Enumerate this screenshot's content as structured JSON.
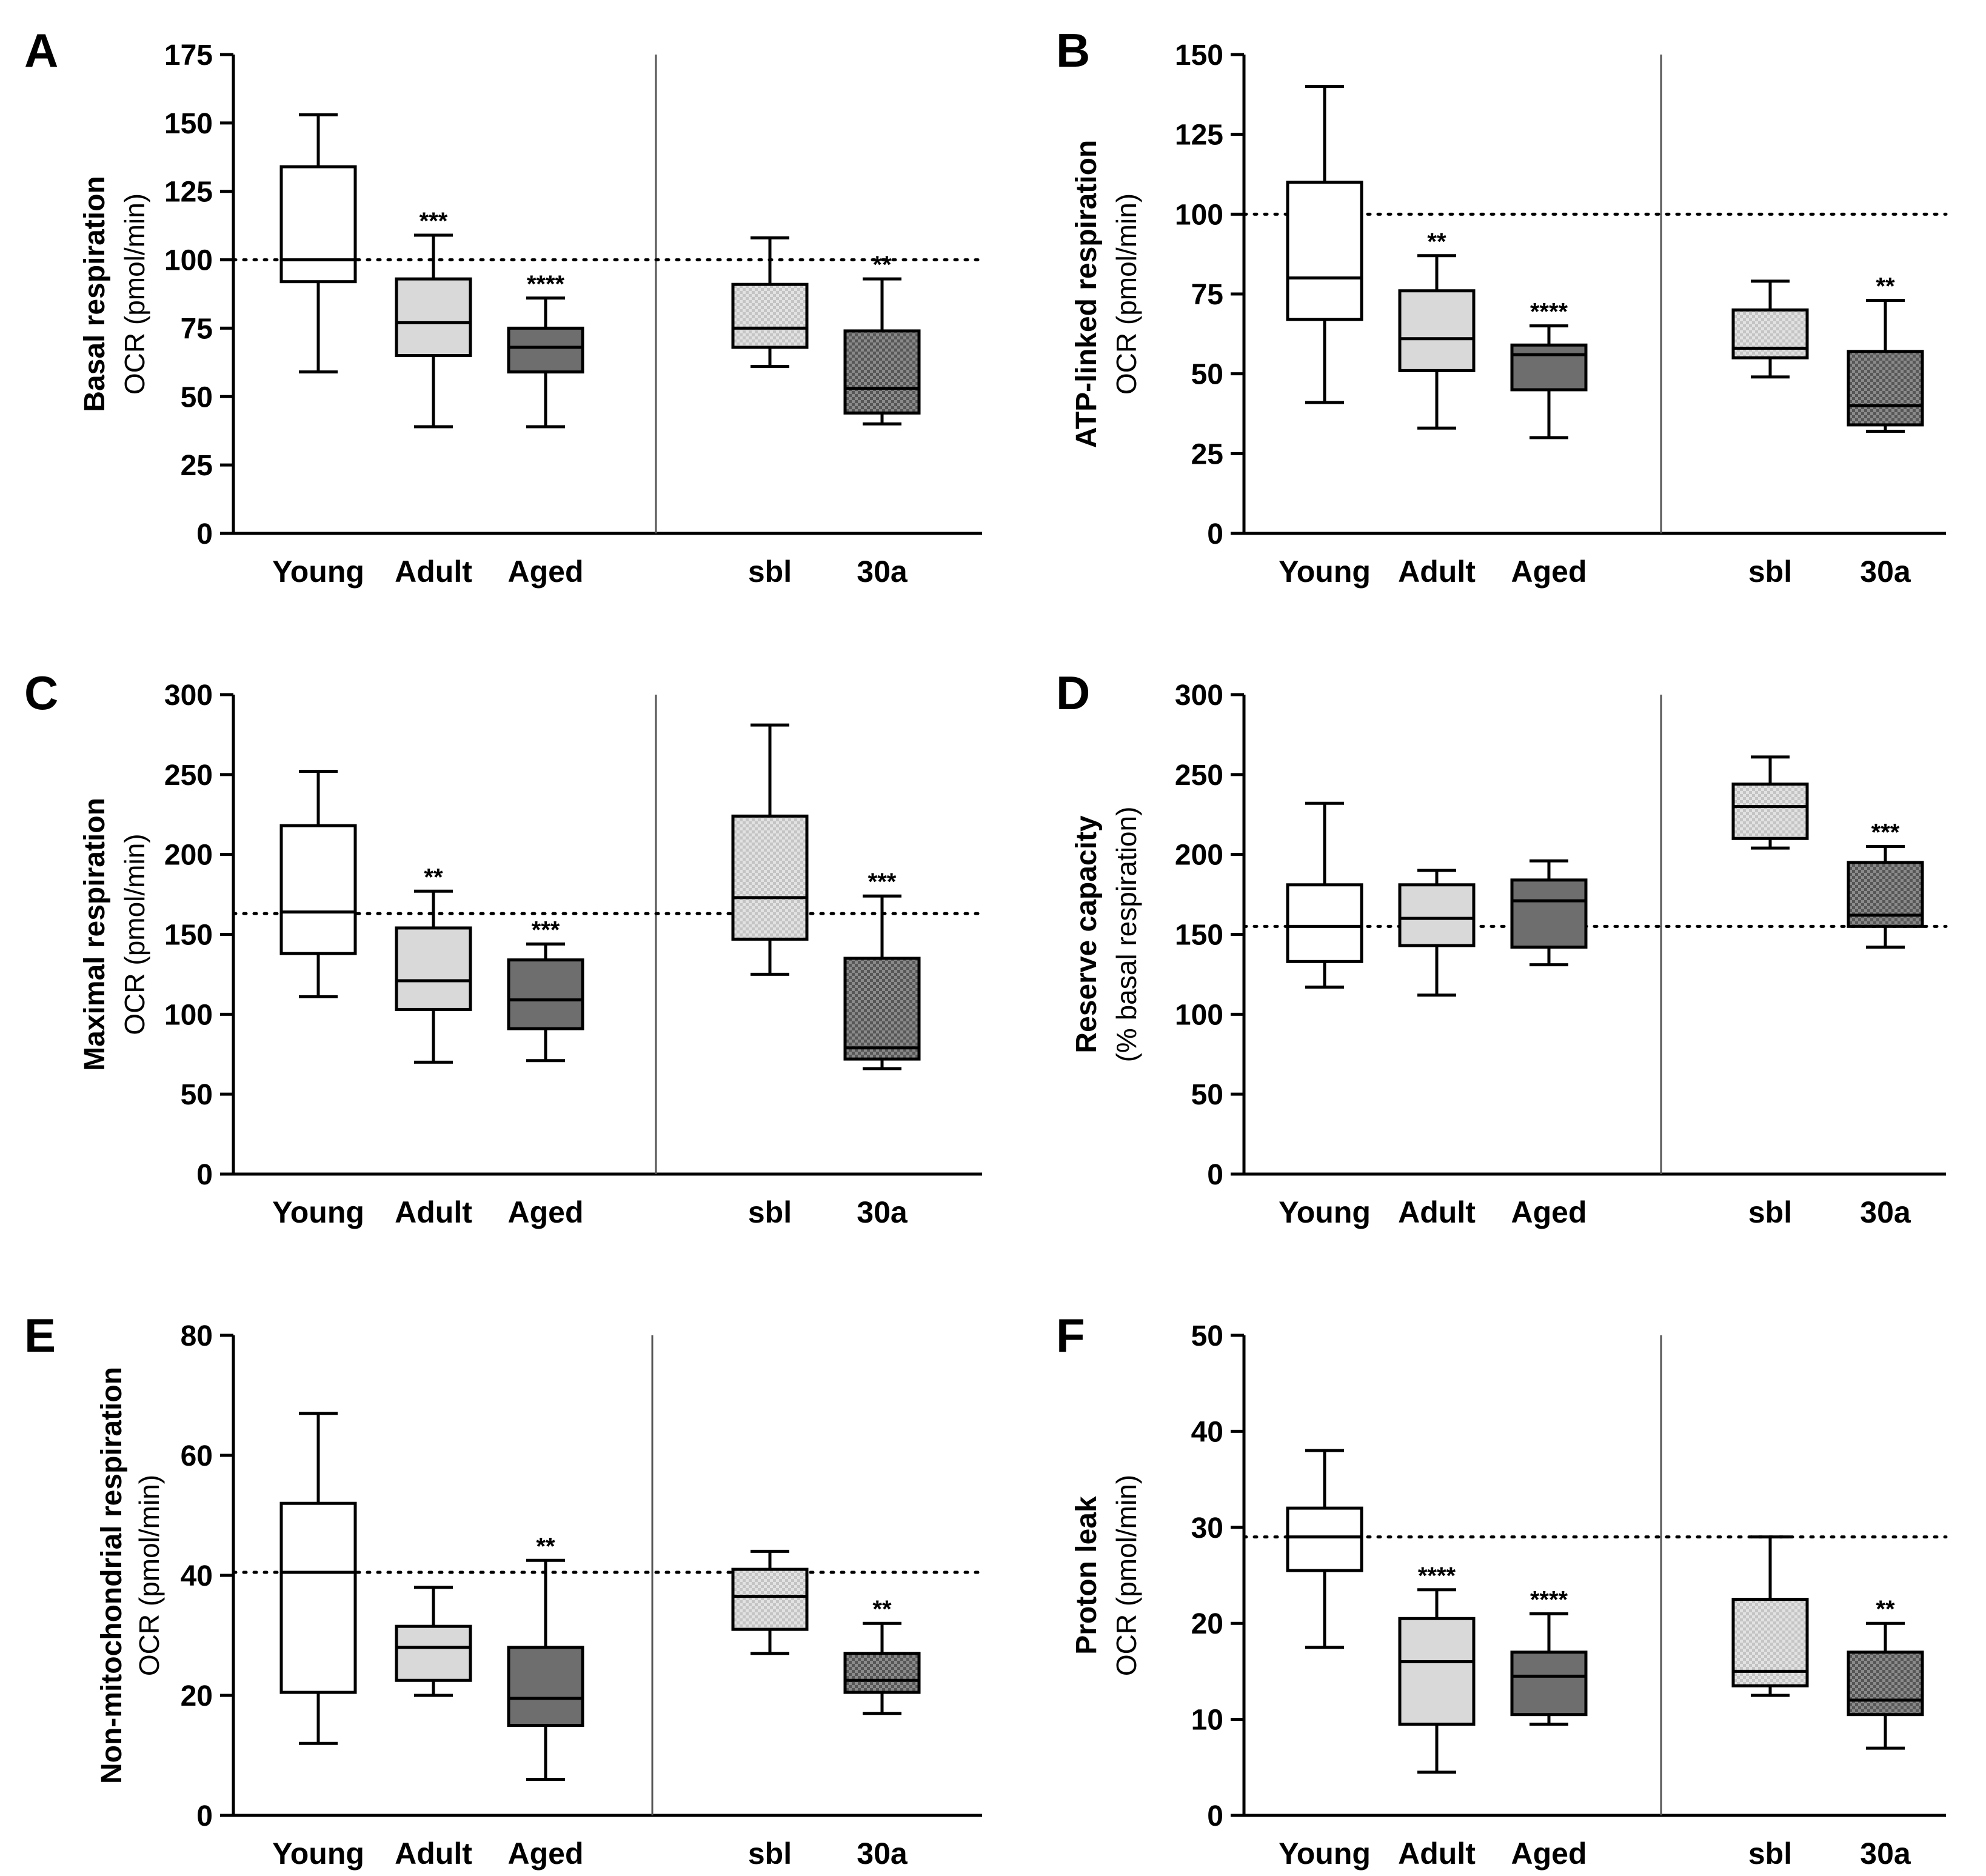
{
  "chart_data": [
    {
      "type": "box",
      "panel": "A",
      "ylabel": "Basal respiration",
      "ylabel2": "OCR (pmol/min)",
      "ylim": [
        0,
        175
      ],
      "yticks": [
        0,
        25,
        50,
        75,
        100,
        125,
        150,
        175
      ],
      "reference_line": 100,
      "categories": [
        "Young",
        "Adult",
        "Aged",
        "sbl",
        "30a"
      ],
      "series": [
        {
          "category": "Young",
          "min": 59,
          "q1": 92,
          "median": 100,
          "q3": 134,
          "max": 153,
          "fill": "white",
          "sig": ""
        },
        {
          "category": "Adult",
          "min": 39,
          "q1": 65,
          "median": 77,
          "q3": 93,
          "max": 109,
          "fill": "light",
          "sig": "***"
        },
        {
          "category": "Aged",
          "min": 39,
          "q1": 59,
          "median": 68,
          "q3": 75,
          "max": 86,
          "fill": "dark",
          "sig": "****"
        },
        {
          "category": "sbl",
          "min": 61,
          "q1": 68,
          "median": 75,
          "q3": 91,
          "max": 108,
          "fill": "light-check",
          "sig": ""
        },
        {
          "category": "30a",
          "min": 40,
          "q1": 44,
          "median": 53,
          "q3": 74,
          "max": 93,
          "fill": "dark-check",
          "sig": "**"
        }
      ]
    },
    {
      "type": "box",
      "panel": "B",
      "ylabel": "ATP-linked respiration",
      "ylabel2": "OCR (pmol/min)",
      "ylim": [
        0,
        150
      ],
      "yticks": [
        0,
        25,
        50,
        75,
        100,
        125,
        150
      ],
      "reference_line": 100,
      "categories": [
        "Young",
        "Adult",
        "Aged",
        "sbl",
        "30a"
      ],
      "series": [
        {
          "category": "Young",
          "min": 41,
          "q1": 67,
          "median": 80,
          "q3": 110,
          "max": 140,
          "fill": "white",
          "sig": ""
        },
        {
          "category": "Adult",
          "min": 33,
          "q1": 51,
          "median": 61,
          "q3": 76,
          "max": 87,
          "fill": "light",
          "sig": "**"
        },
        {
          "category": "Aged",
          "min": 30,
          "q1": 45,
          "median": 56,
          "q3": 59,
          "max": 65,
          "fill": "dark",
          "sig": "****"
        },
        {
          "category": "sbl",
          "min": 49,
          "q1": 55,
          "median": 58,
          "q3": 70,
          "max": 79,
          "fill": "light-check",
          "sig": ""
        },
        {
          "category": "30a",
          "min": 32,
          "q1": 34,
          "median": 40,
          "q3": 57,
          "max": 73,
          "fill": "dark-check",
          "sig": "**"
        }
      ]
    },
    {
      "type": "box",
      "panel": "C",
      "ylabel": "Maximal respiration",
      "ylabel2": "OCR (pmol/min)",
      "ylim": [
        0,
        300
      ],
      "yticks": [
        0,
        50,
        100,
        150,
        200,
        250,
        300
      ],
      "reference_line": 163,
      "categories": [
        "Young",
        "Adult",
        "Aged",
        "sbl",
        "30a"
      ],
      "series": [
        {
          "category": "Young",
          "min": 111,
          "q1": 138,
          "median": 164,
          "q3": 218,
          "max": 252,
          "fill": "white",
          "sig": ""
        },
        {
          "category": "Adult",
          "min": 70,
          "q1": 103,
          "median": 121,
          "q3": 154,
          "max": 177,
          "fill": "light",
          "sig": "**"
        },
        {
          "category": "Aged",
          "min": 71,
          "q1": 91,
          "median": 109,
          "q3": 134,
          "max": 144,
          "fill": "dark",
          "sig": "***"
        },
        {
          "category": "sbl",
          "min": 125,
          "q1": 147,
          "median": 173,
          "q3": 224,
          "max": 281,
          "fill": "light-check",
          "sig": ""
        },
        {
          "category": "30a",
          "min": 66,
          "q1": 72,
          "median": 79,
          "q3": 135,
          "max": 174,
          "fill": "dark-check",
          "sig": "***"
        }
      ]
    },
    {
      "type": "box",
      "panel": "D",
      "ylabel": "Reserve capacity",
      "ylabel2": "(% basal respiration)",
      "ylim": [
        0,
        300
      ],
      "yticks": [
        0,
        50,
        100,
        150,
        200,
        250,
        300
      ],
      "reference_line": 155,
      "categories": [
        "Young",
        "Adult",
        "Aged",
        "sbl",
        "30a"
      ],
      "series": [
        {
          "category": "Young",
          "min": 117,
          "q1": 133,
          "median": 155,
          "q3": 181,
          "max": 232,
          "fill": "white",
          "sig": ""
        },
        {
          "category": "Adult",
          "min": 112,
          "q1": 143,
          "median": 160,
          "q3": 181,
          "max": 190,
          "fill": "light",
          "sig": ""
        },
        {
          "category": "Aged",
          "min": 131,
          "q1": 142,
          "median": 171,
          "q3": 184,
          "max": 196,
          "fill": "dark",
          "sig": ""
        },
        {
          "category": "sbl",
          "min": 204,
          "q1": 210,
          "median": 230,
          "q3": 244,
          "max": 261,
          "fill": "light-check",
          "sig": ""
        },
        {
          "category": "30a",
          "min": 142,
          "q1": 155,
          "median": 162,
          "q3": 195,
          "max": 205,
          "fill": "dark-check",
          "sig": "***"
        }
      ]
    },
    {
      "type": "box",
      "panel": "E",
      "ylabel": "Non-mitochondrial respiration",
      "ylabel2": "OCR (pmol/min)",
      "ylim": [
        0,
        80
      ],
      "yticks": [
        0,
        20,
        40,
        60,
        80
      ],
      "reference_line": 40.5,
      "categories": [
        "Young",
        "Adult",
        "Aged",
        "sbl",
        "30a"
      ],
      "series": [
        {
          "category": "Young",
          "min": 12,
          "q1": 20.5,
          "median": 40.5,
          "q3": 52,
          "max": 67,
          "fill": "white",
          "sig": ""
        },
        {
          "category": "Adult",
          "min": 20,
          "q1": 22.5,
          "median": 28,
          "q3": 31.5,
          "max": 38,
          "fill": "light",
          "sig": ""
        },
        {
          "category": "Aged",
          "min": 6,
          "q1": 15,
          "median": 19.5,
          "q3": 28,
          "max": 42.5,
          "fill": "dark",
          "sig": "**"
        },
        {
          "category": "sbl",
          "min": 27,
          "q1": 31,
          "median": 36.5,
          "q3": 41,
          "max": 44,
          "fill": "light-check",
          "sig": ""
        },
        {
          "category": "30a",
          "min": 17,
          "q1": 20.5,
          "median": 22.5,
          "q3": 27,
          "max": 32,
          "fill": "dark-check",
          "sig": "**"
        }
      ]
    },
    {
      "type": "box",
      "panel": "F",
      "ylabel": "Proton leak",
      "ylabel2": "OCR (pmol/min)",
      "ylim": [
        0,
        50
      ],
      "yticks": [
        0,
        10,
        20,
        30,
        40,
        50
      ],
      "reference_line": 29,
      "categories": [
        "Young",
        "Adult",
        "Aged",
        "sbl",
        "30a"
      ],
      "series": [
        {
          "category": "Young",
          "min": 17.5,
          "q1": 25.5,
          "median": 29,
          "q3": 32,
          "max": 38,
          "fill": "white",
          "sig": ""
        },
        {
          "category": "Adult",
          "min": 4.5,
          "q1": 9.5,
          "median": 16,
          "q3": 20.5,
          "max": 23.5,
          "fill": "light",
          "sig": "****"
        },
        {
          "category": "Aged",
          "min": 9.5,
          "q1": 10.5,
          "median": 14.5,
          "q3": 17,
          "max": 21,
          "fill": "dark",
          "sig": "****"
        },
        {
          "category": "sbl",
          "min": 12.5,
          "q1": 13.5,
          "median": 15,
          "q3": 22.5,
          "max": 29,
          "fill": "light-check",
          "sig": ""
        },
        {
          "category": "30a",
          "min": 7,
          "q1": 10.5,
          "median": 12,
          "q3": 17,
          "max": 20,
          "fill": "dark-check",
          "sig": "**"
        }
      ]
    }
  ]
}
